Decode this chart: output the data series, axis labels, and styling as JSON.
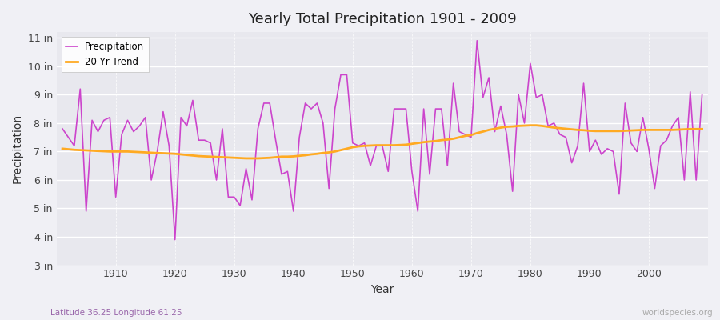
{
  "title": "Yearly Total Precipitation 1901 - 2009",
  "xlabel": "Year",
  "ylabel": "Precipitation",
  "lat_lon_label": "Latitude 36.25 Longitude 61.25",
  "watermark": "worldspecies.org",
  "ylim": [
    3,
    11.2
  ],
  "yticks": [
    3,
    4,
    5,
    6,
    7,
    8,
    9,
    10,
    11
  ],
  "ytick_labels": [
    "3 in",
    "4 in",
    "5 in",
    "6 in",
    "7 in",
    "8 in",
    "9 in",
    "10 in",
    "11 in"
  ],
  "fig_bg_color": "#f0f0f5",
  "plot_bg_color": "#e8e8ee",
  "precip_color": "#cc44cc",
  "trend_color": "#ffaa22",
  "years": [
    1901,
    1902,
    1903,
    1904,
    1905,
    1906,
    1907,
    1908,
    1909,
    1910,
    1911,
    1912,
    1913,
    1914,
    1915,
    1916,
    1917,
    1918,
    1919,
    1920,
    1921,
    1922,
    1923,
    1924,
    1925,
    1926,
    1927,
    1928,
    1929,
    1930,
    1931,
    1932,
    1933,
    1934,
    1935,
    1936,
    1937,
    1938,
    1939,
    1940,
    1941,
    1942,
    1943,
    1944,
    1945,
    1946,
    1947,
    1948,
    1949,
    1950,
    1951,
    1952,
    1953,
    1954,
    1955,
    1956,
    1957,
    1958,
    1959,
    1960,
    1961,
    1962,
    1963,
    1964,
    1965,
    1966,
    1967,
    1968,
    1969,
    1970,
    1971,
    1972,
    1973,
    1974,
    1975,
    1976,
    1977,
    1978,
    1979,
    1980,
    1981,
    1982,
    1983,
    1984,
    1985,
    1986,
    1987,
    1988,
    1989,
    1990,
    1991,
    1992,
    1993,
    1994,
    1995,
    1996,
    1997,
    1998,
    1999,
    2000,
    2001,
    2002,
    2003,
    2004,
    2005,
    2006,
    2007,
    2008,
    2009
  ],
  "precip": [
    7.8,
    7.5,
    7.2,
    9.2,
    4.9,
    8.1,
    7.7,
    8.1,
    8.2,
    5.4,
    7.6,
    8.1,
    7.7,
    7.9,
    8.2,
    6.0,
    7.0,
    8.4,
    7.2,
    3.9,
    8.2,
    7.9,
    8.8,
    7.4,
    7.4,
    7.3,
    6.0,
    7.8,
    5.4,
    5.4,
    5.1,
    6.4,
    5.3,
    7.8,
    8.7,
    8.7,
    7.4,
    6.2,
    6.3,
    4.9,
    7.5,
    8.7,
    8.5,
    8.7,
    8.0,
    5.7,
    8.5,
    9.7,
    9.7,
    7.3,
    7.2,
    7.3,
    6.5,
    7.2,
    7.2,
    6.3,
    8.5,
    8.5,
    8.5,
    6.3,
    4.9,
    8.5,
    6.2,
    8.5,
    8.5,
    6.5,
    9.4,
    7.7,
    7.6,
    7.5,
    10.9,
    8.9,
    9.6,
    7.7,
    8.6,
    7.6,
    5.6,
    9.0,
    8.0,
    10.1,
    8.9,
    9.0,
    7.9,
    8.0,
    7.6,
    7.5,
    6.6,
    7.2,
    9.4,
    7.0,
    7.4,
    6.9,
    7.1,
    7.0,
    5.5,
    8.7,
    7.3,
    7.0,
    8.2,
    7.1,
    5.7,
    7.2,
    7.4,
    7.9,
    8.2,
    6.0,
    9.1,
    6.0,
    9.0
  ],
  "trend": [
    7.1,
    7.08,
    7.06,
    7.05,
    7.04,
    7.03,
    7.02,
    7.01,
    7.0,
    7.0,
    7.0,
    7.0,
    6.99,
    6.98,
    6.97,
    6.96,
    6.95,
    6.94,
    6.93,
    6.92,
    6.9,
    6.88,
    6.86,
    6.84,
    6.83,
    6.82,
    6.81,
    6.8,
    6.79,
    6.78,
    6.77,
    6.76,
    6.76,
    6.76,
    6.77,
    6.78,
    6.8,
    6.82,
    6.82,
    6.83,
    6.85,
    6.87,
    6.9,
    6.92,
    6.95,
    6.97,
    7.0,
    7.05,
    7.1,
    7.15,
    7.18,
    7.2,
    7.21,
    7.22,
    7.22,
    7.22,
    7.22,
    7.23,
    7.24,
    7.27,
    7.3,
    7.33,
    7.35,
    7.37,
    7.4,
    7.42,
    7.45,
    7.5,
    7.55,
    7.58,
    7.65,
    7.7,
    7.76,
    7.8,
    7.84,
    7.87,
    7.88,
    7.9,
    7.91,
    7.92,
    7.92,
    7.9,
    7.87,
    7.84,
    7.82,
    7.8,
    7.78,
    7.76,
    7.75,
    7.73,
    7.72,
    7.72,
    7.72,
    7.72,
    7.72,
    7.73,
    7.74,
    7.75,
    7.76,
    7.76,
    7.76,
    7.76,
    7.76,
    7.76,
    7.77,
    7.78,
    7.79,
    7.79,
    7.79
  ],
  "xlim": [
    1900,
    2010
  ]
}
